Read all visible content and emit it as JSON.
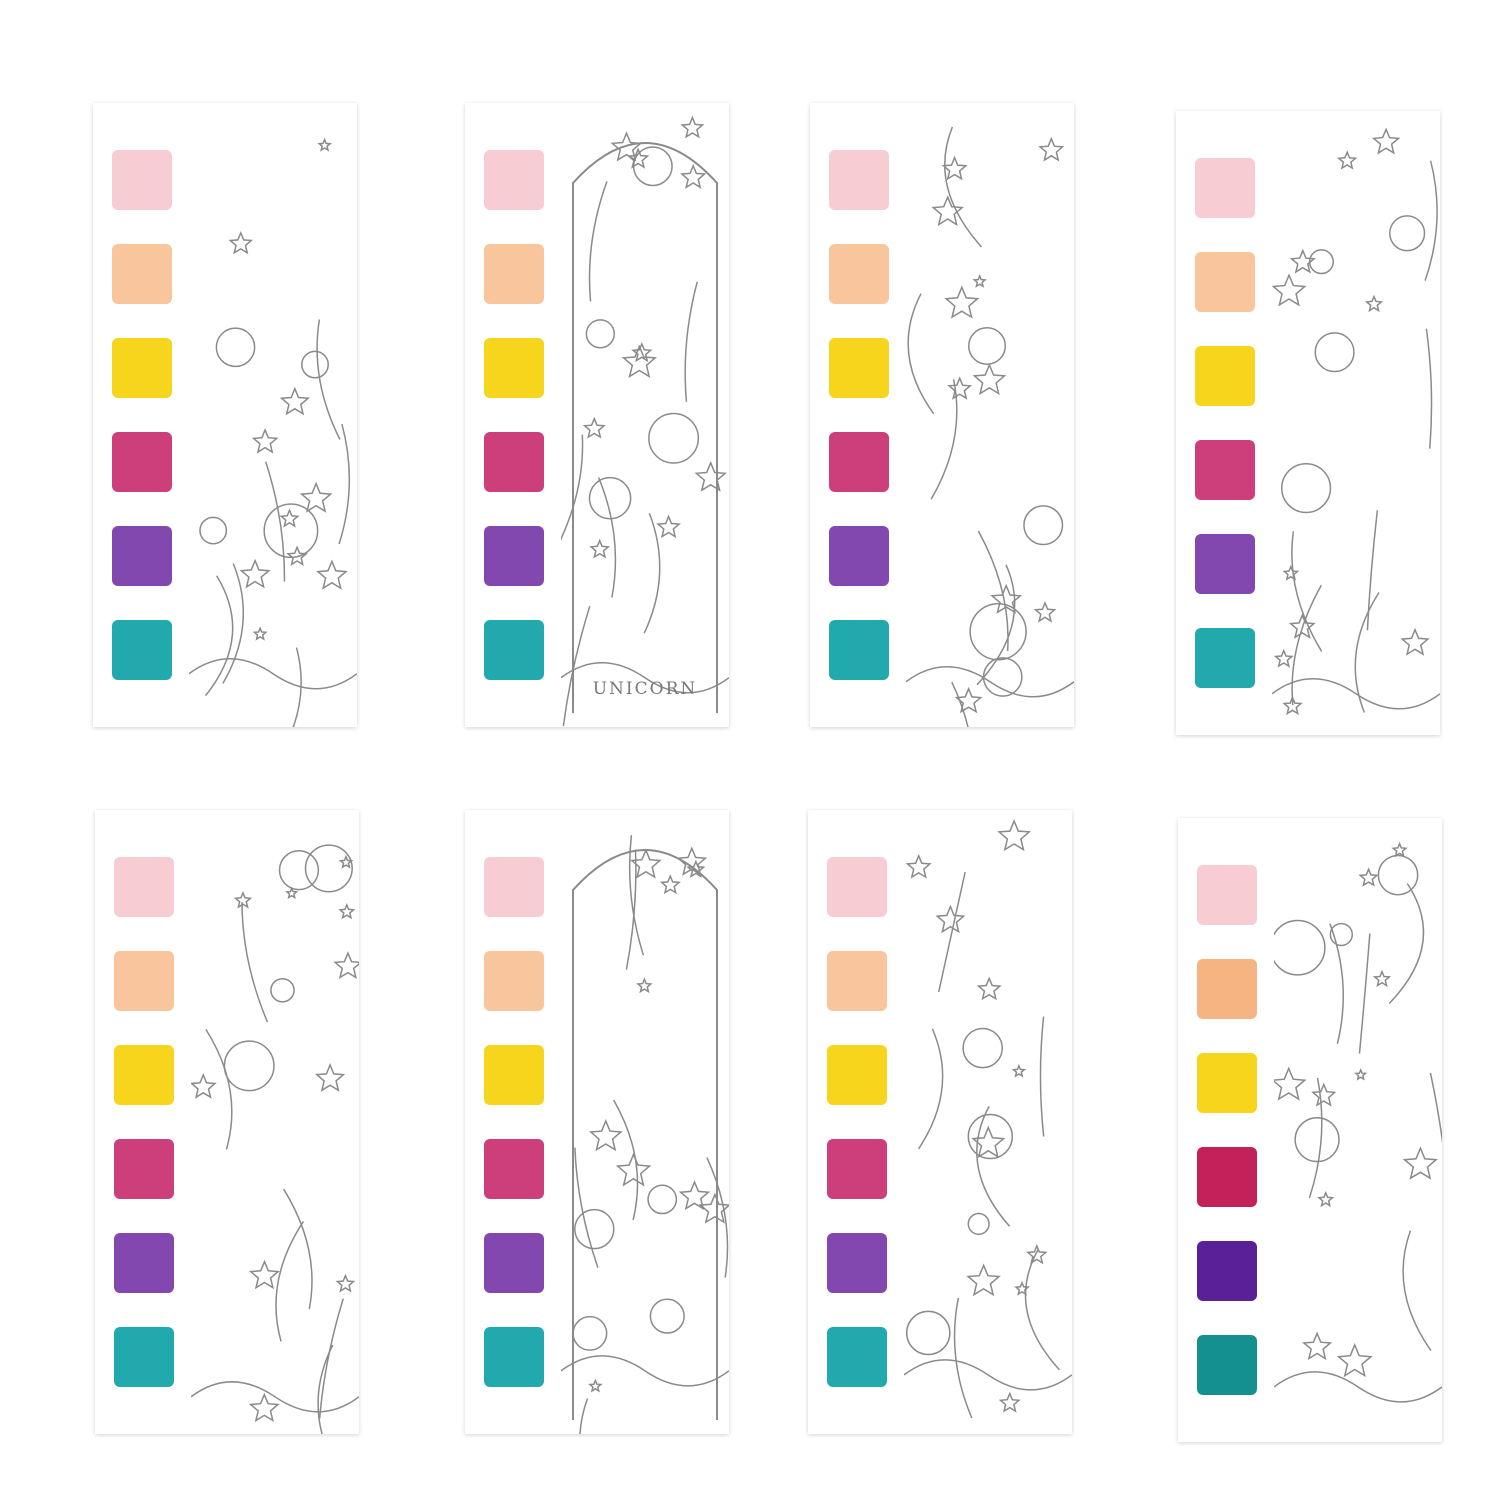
{
  "palette_standard": [
    "#f7cdd3",
    "#f8c59c",
    "#f7d51d",
    "#cc3f7a",
    "#8248b0",
    "#22a9ad"
  ],
  "palette_alt": [
    "#f7cdd3",
    "#f6b482",
    "#f7d51d",
    "#c3215a",
    "#5a2096",
    "#13908f"
  ],
  "bookmarks": [
    {
      "theme": "pegasus-castle",
      "palette": "standard"
    },
    {
      "theme": "unicorn-portrait-arch",
      "palette": "standard",
      "banner": "UNICORN"
    },
    {
      "theme": "rearing-unicorn-moon",
      "palette": "standard"
    },
    {
      "theme": "pegasus-rainbow",
      "palette": "standard"
    },
    {
      "theme": "unicorn-and-girl",
      "palette": "standard"
    },
    {
      "theme": "girl-with-harp",
      "palette": "standard"
    },
    {
      "theme": "unicorn-drinking-pond",
      "palette": "standard"
    },
    {
      "theme": "unicorns-castle-clouds",
      "palette": "alt"
    }
  ],
  "line_color": "#8a8a8a"
}
